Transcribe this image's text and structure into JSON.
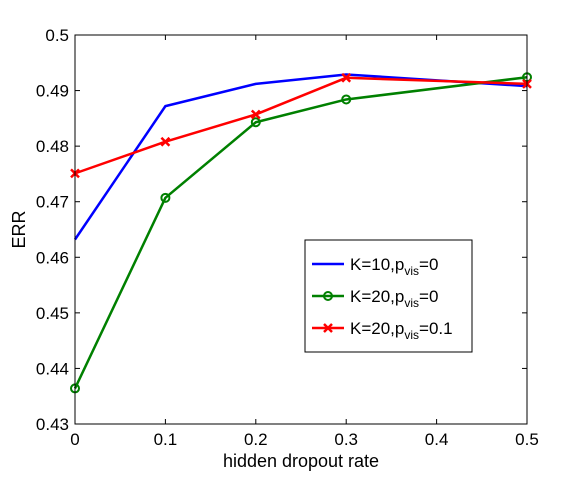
{
  "chart_data": {
    "type": "line",
    "xlabel": "hidden dropout rate",
    "ylabel": "ERR",
    "xlim": [
      0,
      0.5
    ],
    "ylim": [
      0.43,
      0.5
    ],
    "xticks": [
      0,
      0.1,
      0.2,
      0.3,
      0.4,
      0.5
    ],
    "xtick_labels": [
      "0",
      "0.1",
      "0.2",
      "0.3",
      "0.4",
      "0.5"
    ],
    "yticks": [
      0.43,
      0.44,
      0.45,
      0.46,
      0.47,
      0.48,
      0.49,
      0.5
    ],
    "ytick_labels": [
      "0.43",
      "0.44",
      "0.45",
      "0.46",
      "0.47",
      "0.48",
      "0.49",
      "0.5"
    ],
    "grid": false,
    "legend_position": "lower-right",
    "series": [
      {
        "name": "K=10,p_vis=0",
        "legend_main": "K=10,p",
        "legend_sub": "vis",
        "legend_tail": "=0",
        "color": "#0000ff",
        "marker": "none",
        "x": [
          0,
          0.1,
          0.2,
          0.3,
          0.5
        ],
        "y": [
          0.4632,
          0.4872,
          0.4912,
          0.4929,
          0.4908
        ]
      },
      {
        "name": "K=20,p_vis=0",
        "legend_main": "K=20,p",
        "legend_sub": "vis",
        "legend_tail": "=0",
        "color": "#008000",
        "marker": "circle",
        "x": [
          0,
          0.1,
          0.2,
          0.3,
          0.5
        ],
        "y": [
          0.4364,
          0.4707,
          0.4843,
          0.4884,
          0.4924
        ]
      },
      {
        "name": "K=20,p_vis=0.1",
        "legend_main": "K=20,p",
        "legend_sub": "vis",
        "legend_tail": "=0.1",
        "color": "#ff0000",
        "marker": "x",
        "x": [
          0,
          0.1,
          0.2,
          0.3,
          0.5
        ],
        "y": [
          0.4751,
          0.4808,
          0.4857,
          0.4923,
          0.4912
        ]
      }
    ]
  }
}
